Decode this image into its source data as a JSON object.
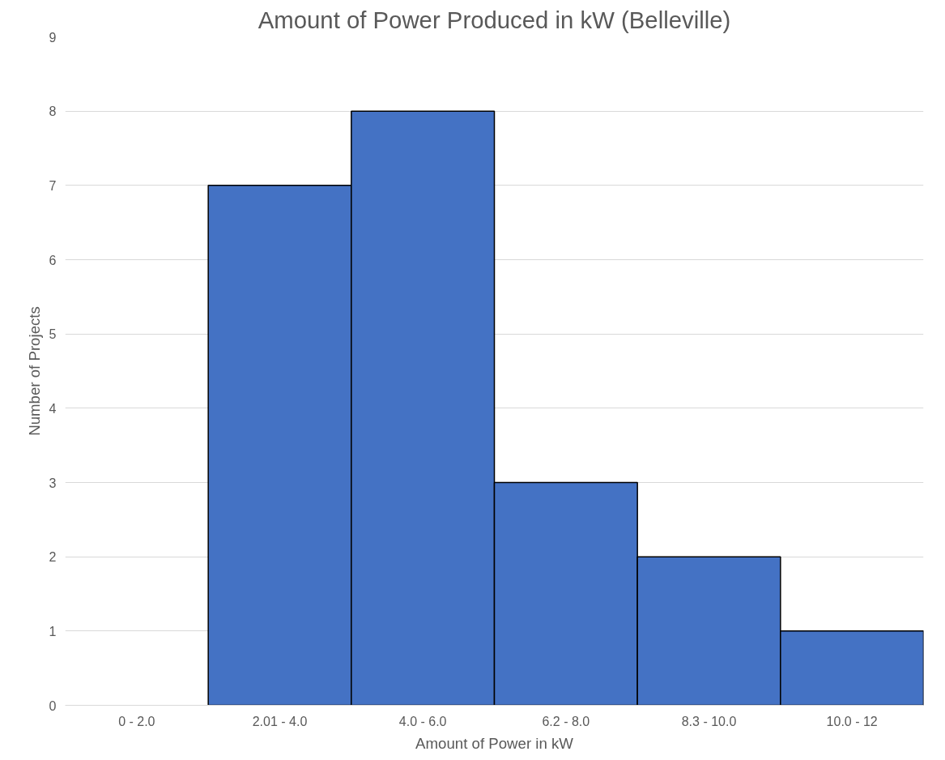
{
  "chart_data": {
    "type": "bar",
    "title": "Amount of Power Produced in kW (Belleville)",
    "xlabel": "Amount of Power in kW",
    "ylabel": "Number of Projects",
    "categories": [
      "0 - 2.0",
      "2.01 - 4.0",
      "4.0 - 6.0",
      "6.2 - 8.0",
      "8.3 - 10.0",
      "10.0 - 12"
    ],
    "values": [
      0,
      7,
      8,
      3,
      2,
      1
    ],
    "color": "#4472c4",
    "ylim": [
      0,
      9
    ],
    "yticks": [
      0,
      1,
      2,
      3,
      4,
      5,
      6,
      7,
      8,
      9
    ],
    "grid": "y"
  }
}
